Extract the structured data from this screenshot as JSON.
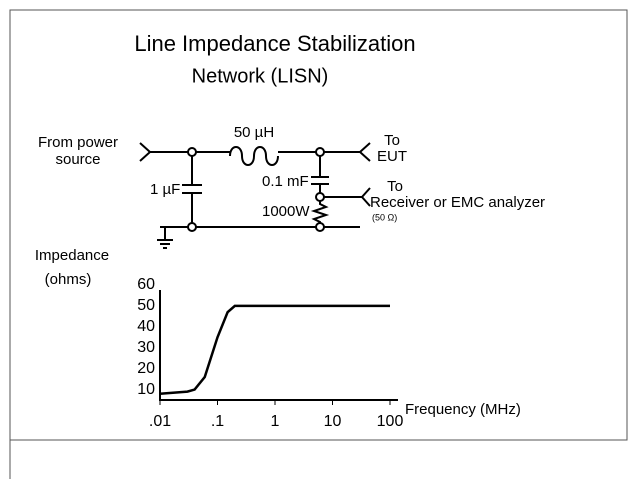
{
  "title": "Line Impedance Stabilization",
  "subtitle": "Network (LISN)",
  "circuit": {
    "source_label": [
      "From power",
      "source"
    ],
    "inductor_label": "50 µH",
    "capacitor1_label": "1 µF",
    "capacitor2_label": "0.1 mF",
    "resistor_label": "1000W",
    "eut_label": [
      "To",
      "EUT"
    ],
    "receiver_label": [
      "To",
      "Receiver or EMC analyzer"
    ],
    "receiver_note": "(50 Ω)"
  },
  "chart_data": {
    "type": "line",
    "y_label": [
      "Impedance",
      "(ohms)"
    ],
    "x_label": "Frequency (MHz)",
    "x": [
      0.01,
      0.03,
      0.04,
      0.06,
      0.1,
      0.15,
      0.2,
      100
    ],
    "values": [
      8,
      9,
      10,
      16,
      35,
      47,
      50,
      50
    ],
    "xlim": [
      0.01,
      100
    ],
    "xscale": "log",
    "xticks": [
      {
        "value": 0.01,
        "label": ".01"
      },
      {
        "value": 0.1,
        "label": ".1"
      },
      1,
      10,
      100
    ],
    "ylim": [
      5,
      60
    ],
    "yticks": [
      10,
      20,
      30,
      40,
      50,
      60
    ],
    "color": "#000000"
  }
}
